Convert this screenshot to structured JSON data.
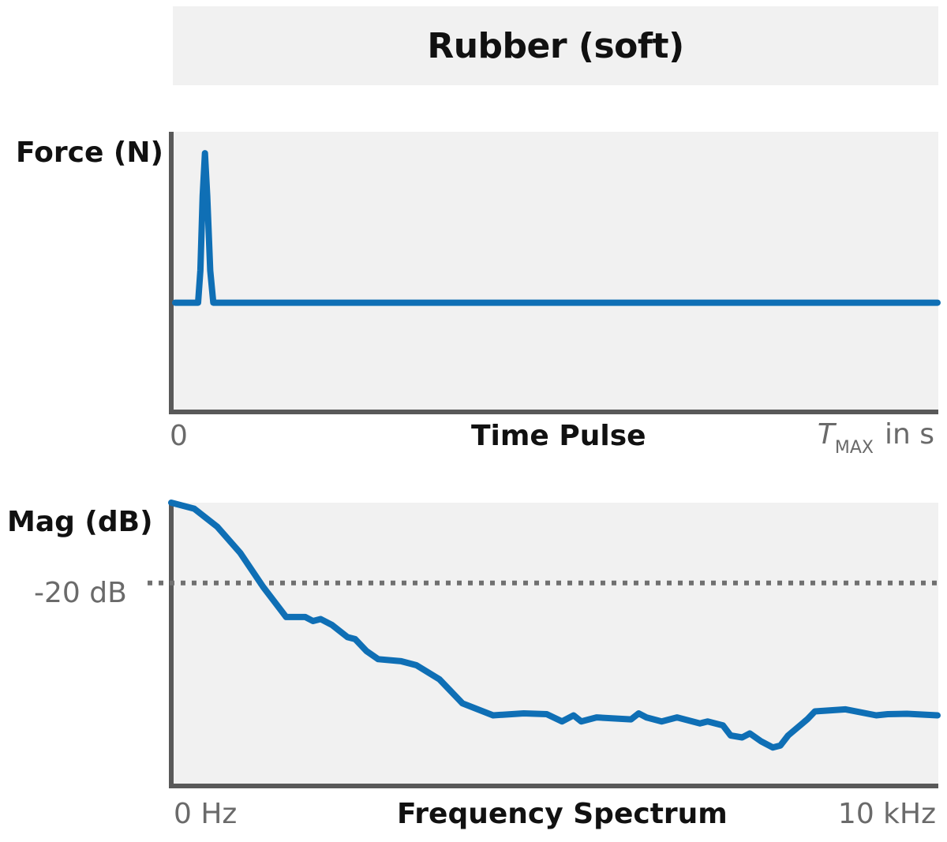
{
  "header": {
    "title": "Rubber (soft)"
  },
  "colors": {
    "series": "#0f6fb5",
    "axis": "#595959",
    "panel_bg": "#f1f1f1",
    "reference_line": "#707070"
  },
  "chart_data": [
    {
      "type": "line",
      "ylabel": "Force (N)",
      "xlabel": "Time Pulse",
      "x_ticks": {
        "start": "0",
        "end_symbol": "T",
        "end_subscript": "MAX",
        "end_unit": "in s"
      },
      "xlim": [
        0,
        1
      ],
      "ylim": [
        -1,
        1.6
      ],
      "grid": false,
      "series": [
        {
          "x": [
            0,
            0.03,
            0.033,
            0.036,
            0.039,
            0.042,
            0.046,
            0.05,
            1.0
          ],
          "y": [
            0,
            0,
            0.3,
            1.0,
            1.4,
            1.0,
            0.3,
            0,
            0
          ]
        }
      ]
    },
    {
      "type": "line",
      "ylabel": "Mag (dB)",
      "xlabel": "Frequency Spectrum",
      "x_ticks": [
        "0 Hz",
        "10 kHz"
      ],
      "xlim": [
        0,
        10
      ],
      "ylim": [
        -70,
        0
      ],
      "grid": false,
      "reference_lines": [
        {
          "y": -20,
          "label": "-20 dB",
          "style": "dotted"
        }
      ],
      "series": [
        {
          "x": [
            0,
            0.3,
            0.6,
            0.9,
            1.2,
            1.5,
            1.75,
            1.85,
            1.95,
            2.1,
            2.3,
            2.4,
            2.55,
            2.7,
            3.0,
            3.2,
            3.5,
            3.8,
            4.2,
            4.6,
            4.9,
            5.1,
            5.25,
            5.35,
            5.55,
            6.0,
            6.1,
            6.2,
            6.4,
            6.6,
            6.9,
            7.0,
            7.2,
            7.3,
            7.45,
            7.55,
            7.7,
            7.85,
            7.95,
            8.05,
            8.3,
            8.4,
            8.8,
            9.2,
            9.35,
            9.6,
            10.0
          ],
          "y": [
            0.0,
            -1.5,
            -6.0,
            -12.5,
            -21.0,
            -28.5,
            -28.5,
            -29.5,
            -29.0,
            -30.5,
            -33.5,
            -34.0,
            -37.0,
            -39.0,
            -39.5,
            -40.5,
            -44.0,
            -50.0,
            -53.0,
            -52.5,
            -52.7,
            -54.5,
            -53.0,
            -54.5,
            -53.5,
            -54.0,
            -52.5,
            -53.5,
            -54.5,
            -53.5,
            -55.0,
            -54.5,
            -55.5,
            -58.0,
            -58.5,
            -57.5,
            -59.5,
            -61.0,
            -60.5,
            -58.0,
            -54.0,
            -52.0,
            -51.5,
            -53.0,
            -52.7,
            -52.6,
            -53.0
          ]
        }
      ]
    }
  ]
}
